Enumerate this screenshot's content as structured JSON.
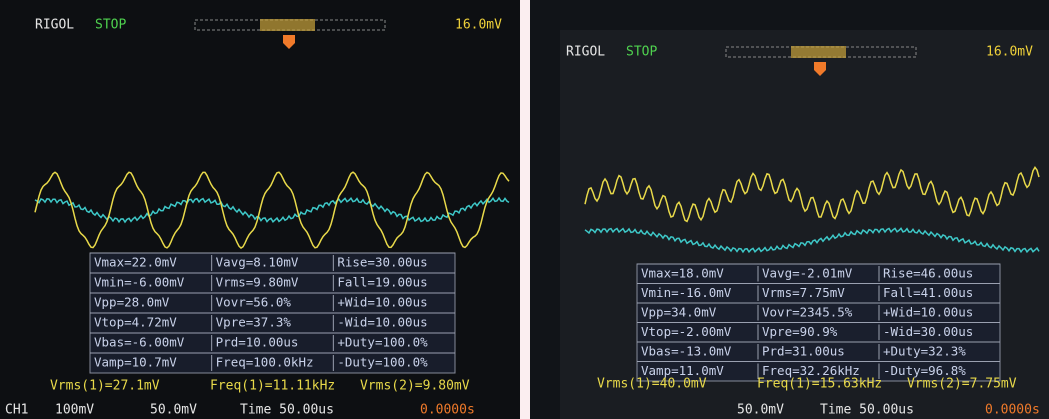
{
  "panels": [
    {
      "brand": "RIGOL",
      "status": "STOP",
      "trigger_level": "16.0mV",
      "measurements": [
        [
          "Vmax=22.0mV",
          "Vavg=8.10mV",
          "Rise=30.00us"
        ],
        [
          "Vmin=-6.00mV",
          "Vrms=9.80mV",
          "Fall=19.00us"
        ],
        [
          "Vpp=28.0mV",
          "Vovr=56.0%",
          "+Wid=10.00us"
        ],
        [
          "Vtop=4.72mV",
          "Vpre=37.3%",
          "-Wid=10.00us"
        ],
        [
          "Vbas=-6.00mV",
          "Prd=10.00us",
          "+Duty=100.0%"
        ],
        [
          "Vamp=10.7mV",
          "Freq=100.0kHz",
          "-Duty=100.0%"
        ]
      ],
      "readouts": [
        "Vrms(1)=27.1mV",
        "Freq(1)=11.11kHz",
        "Vrms(2)=9.80mV"
      ],
      "footer": [
        "CH1",
        "100mV",
        "50.0mV",
        "Time 50.00us",
        "0.0000s"
      ]
    },
    {
      "brand": "RIGOL",
      "status": "STOP",
      "trigger_level": "16.0mV",
      "measurements": [
        [
          "Vmax=18.0mV",
          "Vavg=-2.01mV",
          "Rise=46.00us"
        ],
        [
          "Vmin=-16.0mV",
          "Vrms=7.75mV",
          "Fall=41.00us"
        ],
        [
          "Vpp=34.0mV",
          "Vovr=2345.5%",
          "+Wid=10.00us"
        ],
        [
          "Vtop=-2.00mV",
          "Vpre=90.9%",
          "-Wid=30.00us"
        ],
        [
          "Vbas=-13.0mV",
          "Prd=31.00us",
          "+Duty=32.3%"
        ],
        [
          "Vamp=11.0mV",
          "Freq=32.26kHz",
          "-Duty=96.8%"
        ]
      ],
      "readouts": [
        "Vrms(1)=40.0mV",
        "Freq(1)=15.63kHz",
        "Vrms(2)=7.75mV"
      ],
      "footer": [
        "50.0mV",
        "Time 50.00us",
        "0.0000s"
      ]
    }
  ]
}
